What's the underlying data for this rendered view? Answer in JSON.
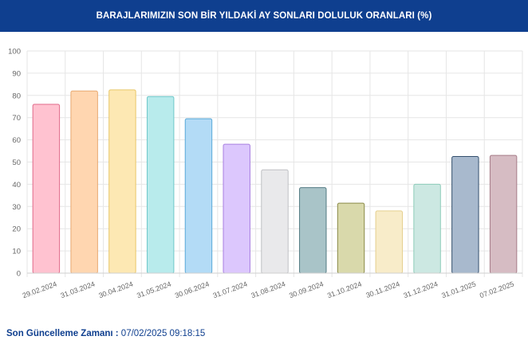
{
  "header": {
    "title": "BARAJLARIMIZIN SON BİR YILDAKİ AY SONLARI DOLULUK ORANLARI (%)"
  },
  "footer": {
    "label": "Son Güncelleme Zamanı :",
    "value": "07/02/2025 09:18:15"
  },
  "colors": {
    "header_bg": "#0f3f8f"
  },
  "chart_data": {
    "type": "bar",
    "title": "BARAJLARIMIZIN SON BİR YILDAKİ AY SONLARI DOLULUK ORANLARI (%)",
    "xlabel": "",
    "ylabel": "",
    "ylim": [
      0,
      100
    ],
    "yticks": [
      0,
      10,
      20,
      30,
      40,
      50,
      60,
      70,
      80,
      90,
      100
    ],
    "grid": true,
    "categories": [
      "29.02.2024",
      "31.03.2024",
      "30.04.2024",
      "31.05.2024",
      "30.06.2024",
      "31.07.2024",
      "31.08.2024",
      "30.09.2024",
      "31.10.2024",
      "30.11.2024",
      "31.12.2024",
      "31.01.2025",
      "07.02.2025"
    ],
    "values": [
      76,
      82,
      82.5,
      79.5,
      69.5,
      58,
      46.5,
      38.5,
      31.5,
      28,
      40,
      52.5,
      53
    ],
    "fill_colors": [
      "#ffc2d0",
      "#ffd6b0",
      "#fde8b3",
      "#b8ebec",
      "#b3dbf6",
      "#dcc7fd",
      "#e9e9eb",
      "#a9c4c8",
      "#d9d9ab",
      "#f8ecc9",
      "#cce8e2",
      "#a8b9cd",
      "#d6bcc3"
    ],
    "stroke_colors": [
      "#e06a8a",
      "#e8a970",
      "#e8c668",
      "#6fc7c9",
      "#5aa9d8",
      "#a87fe0",
      "#bfc0c4",
      "#527a82",
      "#8a8a48",
      "#e5cf8e",
      "#8ccbb9",
      "#34506e",
      "#a67c88"
    ]
  }
}
